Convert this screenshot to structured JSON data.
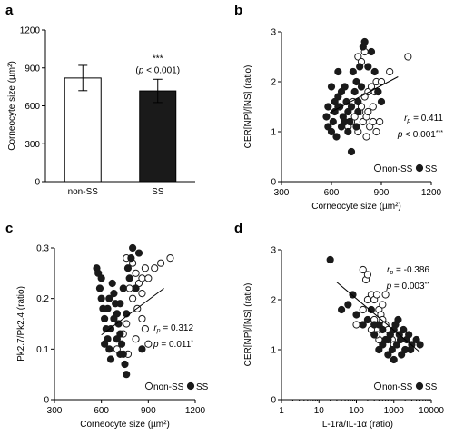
{
  "chart_data": [
    {
      "panel": "a",
      "type": "bar",
      "ylabel": "Corneocyte size (µm²)",
      "ylim": [
        0,
        1200
      ],
      "yticks": [
        "0",
        "300",
        "600",
        "900",
        "1200"
      ],
      "categories": [
        "non-SS",
        "SS"
      ],
      "values": [
        820,
        718
      ],
      "errors": [
        100,
        92
      ],
      "fills": [
        "#ffffff",
        "#1a1a1a"
      ],
      "annotation_stars": "***",
      "annotation_p": "(p < 0.001)"
    },
    {
      "panel": "b",
      "type": "scatter",
      "xlabel": "Corneocyte size (µm²)",
      "ylabel": "CER[NP]/[NS] (ratio)",
      "xlim": [
        300,
        1200
      ],
      "ylim": [
        0,
        3
      ],
      "xticks": [
        "300",
        "600",
        "900",
        "1200"
      ],
      "yticks": [
        "0",
        "1",
        "2",
        "3"
      ],
      "r_text": "rP = 0.411",
      "p_text": "p < 0.001***",
      "legend": [
        "non-SS",
        "SS"
      ],
      "trend": [
        [
          590,
          1.38
        ],
        [
          1000,
          2.1
        ]
      ],
      "series": [
        {
          "name": "non-SS",
          "points": [
            [
              700,
              1.1
            ],
            [
              720,
              1.2
            ],
            [
              740,
              1.3
            ],
            [
              760,
              1.0
            ],
            [
              770,
              1.4
            ],
            [
              780,
              1.5
            ],
            [
              790,
              1.2
            ],
            [
              800,
              1.7
            ],
            [
              810,
              1.3
            ],
            [
              820,
              1.8
            ],
            [
              830,
              1.1
            ],
            [
              840,
              1.9
            ],
            [
              850,
              1.5
            ],
            [
              860,
              1.8
            ],
            [
              870,
              2.0
            ],
            [
              880,
              1.8
            ],
            [
              890,
              1.2
            ],
            [
              760,
              2.5
            ],
            [
              800,
              2.6
            ],
            [
              780,
              2.4
            ],
            [
              900,
              2.0
            ],
            [
              950,
              2.2
            ],
            [
              1060,
              2.5
            ],
            [
              820,
              1.4
            ],
            [
              870,
              1.0
            ],
            [
              730,
              1.6
            ],
            [
              810,
              0.9
            ],
            [
              850,
              1.2
            ]
          ]
        },
        {
          "name": "SS",
          "points": [
            [
              570,
              1.3
            ],
            [
              580,
              1.5
            ],
            [
              600,
              1.0
            ],
            [
              610,
              1.2
            ],
            [
              620,
              1.4
            ],
            [
              630,
              0.9
            ],
            [
              640,
              1.7
            ],
            [
              650,
              1.5
            ],
            [
              660,
              1.1
            ],
            [
              670,
              1.3
            ],
            [
              680,
              1.9
            ],
            [
              690,
              1.6
            ],
            [
              700,
              1.4
            ],
            [
              710,
              1.2
            ],
            [
              720,
              1.5
            ],
            [
              730,
              2.2
            ],
            [
              740,
              1.8
            ],
            [
              750,
              2.0
            ],
            [
              760,
              1.6
            ],
            [
              770,
              2.3
            ],
            [
              780,
              1.9
            ],
            [
              790,
              2.7
            ],
            [
              800,
              2.8
            ],
            [
              820,
              2.3
            ],
            [
              840,
              2.6
            ],
            [
              860,
              2.2
            ],
            [
              880,
              1.8
            ],
            [
              900,
              1.6
            ],
            [
              720,
              0.6
            ],
            [
              660,
              1.8
            ],
            [
              640,
              1.5
            ],
            [
              600,
              1.9
            ],
            [
              700,
              1.0
            ],
            [
              750,
              1.1
            ],
            [
              680,
              1.2
            ],
            [
              620,
              1.6
            ],
            [
              760,
              1.4
            ],
            [
              580,
              1.1
            ],
            [
              640,
              2.2
            ]
          ]
        }
      ]
    },
    {
      "panel": "c",
      "type": "scatter",
      "xlabel": "Corneocyte size (µm²)",
      "ylabel": "Pk2.7/Pk2.4 (ratio)",
      "xlim": [
        300,
        1200
      ],
      "ylim": [
        0,
        0.3
      ],
      "xticks": [
        "300",
        "600",
        "900",
        "1200"
      ],
      "yticks": [
        "0",
        "0.1",
        "0.2",
        "0.3"
      ],
      "r_text": "rP = 0.312",
      "p_text": "p = 0.011*",
      "legend": [
        "non-SS",
        "SS"
      ],
      "trend": [
        [
          600,
          0.128
        ],
        [
          1000,
          0.22
        ]
      ],
      "series": [
        {
          "name": "non-SS",
          "points": [
            [
              760,
              0.28
            ],
            [
              800,
              0.27
            ],
            [
              820,
              0.25
            ],
            [
              840,
              0.23
            ],
            [
              860,
              0.24
            ],
            [
              880,
              0.26
            ],
            [
              900,
              0.24
            ],
            [
              940,
              0.26
            ],
            [
              980,
              0.27
            ],
            [
              1040,
              0.28
            ],
            [
              780,
              0.22
            ],
            [
              800,
              0.2
            ],
            [
              830,
              0.18
            ],
            [
              860,
              0.16
            ],
            [
              880,
              0.14
            ],
            [
              900,
              0.11
            ],
            [
              760,
              0.15
            ],
            [
              740,
              0.13
            ],
            [
              770,
              0.09
            ],
            [
              700,
              0.1
            ],
            [
              820,
              0.12
            ],
            [
              860,
              0.21
            ]
          ]
        },
        {
          "name": "SS",
          "points": [
            [
              570,
              0.26
            ],
            [
              580,
              0.25
            ],
            [
              590,
              0.22
            ],
            [
              600,
              0.2
            ],
            [
              610,
              0.18
            ],
            [
              620,
              0.16
            ],
            [
              630,
              0.14
            ],
            [
              640,
              0.12
            ],
            [
              650,
              0.1
            ],
            [
              660,
              0.08
            ],
            [
              670,
              0.23
            ],
            [
              680,
              0.21
            ],
            [
              690,
              0.19
            ],
            [
              700,
              0.17
            ],
            [
              710,
              0.15
            ],
            [
              720,
              0.13
            ],
            [
              730,
              0.11
            ],
            [
              740,
              0.09
            ],
            [
              750,
              0.07
            ],
            [
              760,
              0.05
            ],
            [
              770,
              0.26
            ],
            [
              780,
              0.24
            ],
            [
              790,
              0.28
            ],
            [
              800,
              0.3
            ],
            [
              820,
              0.22
            ],
            [
              840,
              0.29
            ],
            [
              860,
              0.1
            ],
            [
              600,
              0.24
            ],
            [
              620,
              0.11
            ],
            [
              640,
              0.18
            ],
            [
              660,
              0.14
            ],
            [
              700,
              0.12
            ],
            [
              720,
              0.19
            ],
            [
              740,
              0.22
            ],
            [
              760,
              0.17
            ],
            [
              680,
              0.16
            ],
            [
              720,
              0.09
            ],
            [
              650,
              0.2
            ]
          ]
        }
      ]
    },
    {
      "panel": "d",
      "type": "scatter",
      "xscale": "log",
      "xlabel": "IL-1ra/IL-1α (ratio)",
      "ylabel": "CER[NP]/[NS] (ratio)",
      "xlim": [
        1,
        10000
      ],
      "ylim": [
        0,
        3
      ],
      "xticks": [
        "1",
        "10",
        "100",
        "1000",
        "10000"
      ],
      "yticks": [
        "0",
        "1",
        "2",
        "3"
      ],
      "r_text": "rP = -0.386",
      "p_text": "p = 0.003**",
      "legend": [
        "non-SS",
        "SS"
      ],
      "trend": [
        [
          30,
          2.35
        ],
        [
          5000,
          0.95
        ]
      ],
      "series": [
        {
          "name": "non-SS",
          "points": [
            [
              150,
              2.6
            ],
            [
              180,
              2.4
            ],
            [
              200,
              2.5
            ],
            [
              250,
              2.1
            ],
            [
              300,
              2.0
            ],
            [
              350,
              2.1
            ],
            [
              400,
              1.8
            ],
            [
              450,
              1.7
            ],
            [
              500,
              1.6
            ],
            [
              600,
              1.5
            ],
            [
              700,
              1.4
            ],
            [
              800,
              1.3
            ],
            [
              900,
              1.2
            ],
            [
              1000,
              1.1
            ],
            [
              300,
              1.6
            ],
            [
              250,
              1.4
            ],
            [
              400,
              1.2
            ],
            [
              600,
              2.1
            ],
            [
              200,
              2.0
            ],
            [
              150,
              1.8
            ],
            [
              350,
              1.3
            ],
            [
              500,
              1.9
            ],
            [
              100,
              1.5
            ]
          ]
        },
        {
          "name": "SS",
          "points": [
            [
              20,
              2.8
            ],
            [
              40,
              1.8
            ],
            [
              60,
              1.9
            ],
            [
              80,
              2.1
            ],
            [
              100,
              1.7
            ],
            [
              150,
              1.5
            ],
            [
              200,
              1.6
            ],
            [
              250,
              1.8
            ],
            [
              300,
              1.3
            ],
            [
              400,
              1.5
            ],
            [
              500,
              1.4
            ],
            [
              600,
              1.2
            ],
            [
              800,
              1.3
            ],
            [
              1000,
              1.4
            ],
            [
              1200,
              1.1
            ],
            [
              1500,
              1.2
            ],
            [
              2000,
              1.0
            ],
            [
              2500,
              1.3
            ],
            [
              3000,
              1.1
            ],
            [
              4000,
              1.2
            ],
            [
              5000,
              1.1
            ],
            [
              700,
              0.9
            ],
            [
              900,
              1.0
            ],
            [
              1100,
              1.5
            ],
            [
              1300,
              1.6
            ],
            [
              1600,
              0.9
            ],
            [
              400,
              1.0
            ],
            [
              500,
              1.1
            ],
            [
              700,
              1.2
            ],
            [
              300,
              1.5
            ],
            [
              1800,
              1.4
            ],
            [
              2200,
              1.2
            ],
            [
              2800,
              1.0
            ],
            [
              1000,
              0.8
            ],
            [
              1400,
              1.3
            ]
          ]
        }
      ]
    }
  ]
}
